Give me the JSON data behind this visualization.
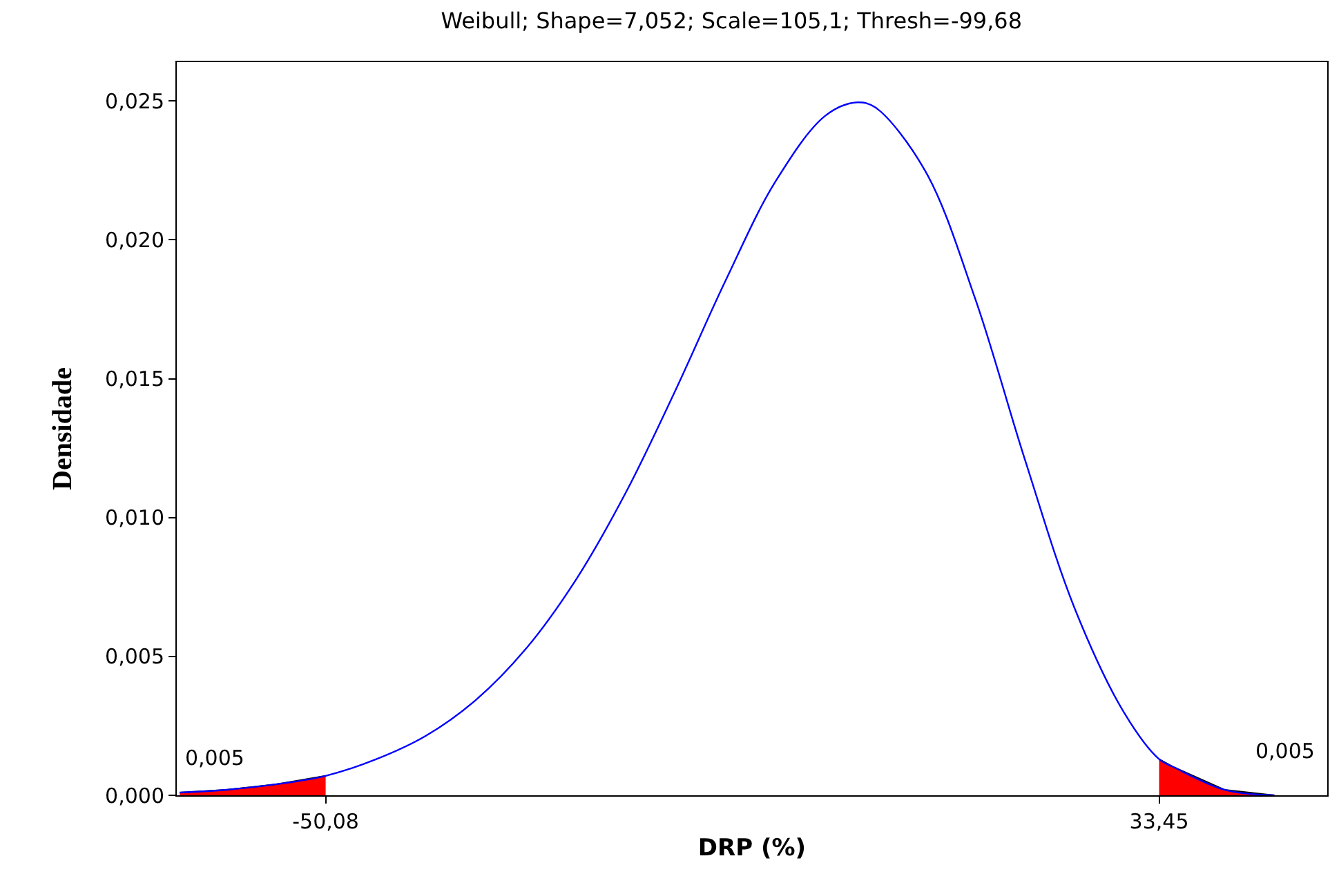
{
  "chart_data": {
    "type": "line",
    "title": "Weibull; Shape=7,052; Scale=105,1; Thresh=-99,68",
    "xlabel": "DRP (%)",
    "ylabel": "Densidade",
    "xlim": [
      -65,
      50.3
    ],
    "ylim": [
      0,
      0.0264
    ],
    "xticks": [
      {
        "value": -50.08,
        "label": "-50,08"
      },
      {
        "value": 33.45,
        "label": "33,45"
      }
    ],
    "yticks": [
      {
        "value": 0,
        "label": "0,000"
      },
      {
        "value": 0.005,
        "label": "0,005"
      },
      {
        "value": 0.01,
        "label": "0,010"
      },
      {
        "value": 0.015,
        "label": "0,015"
      },
      {
        "value": 0.02,
        "label": "0,020"
      },
      {
        "value": 0.025,
        "label": "0,025"
      }
    ],
    "grid": false,
    "legend": false,
    "marker": "none",
    "line_style": "solid",
    "series": [
      {
        "color": "#0000ff",
        "x": [
          -64.7,
          -60,
          -55,
          -50.08,
          -45,
          -40,
          -35,
          -30,
          -25,
          -20,
          -15,
          -10,
          -5,
          0,
          3.17,
          5,
          10,
          15,
          20,
          25,
          30,
          33.45,
          35,
          40,
          45
        ],
        "values": [
          0.0001,
          0.0002,
          0.0004,
          0.0007,
          0.0013,
          0.00215,
          0.00344,
          0.00528,
          0.00776,
          0.0109,
          0.0146,
          0.01853,
          0.0221,
          0.02447,
          0.02495,
          0.02477,
          0.02249,
          0.0179,
          0.01209,
          0.00672,
          0.00294,
          0.0013,
          0.001,
          0.0002,
          0
        ]
      },
      {
        "type": "area",
        "color": "#ff0000",
        "x": [
          -64.7,
          -60,
          -55,
          -50.08
        ],
        "values": [
          0.0001,
          0.0002,
          0.0004,
          0.0007
        ]
      },
      {
        "type": "area",
        "color": "#ff0000",
        "x": [
          33.45,
          35,
          40,
          45
        ],
        "values": [
          0.0013,
          0.001,
          0.0002,
          0
        ]
      }
    ],
    "annotations": [
      "0,005",
      "0,005"
    ]
  }
}
